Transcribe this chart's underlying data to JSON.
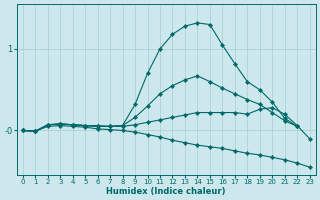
{
  "xlabel": "Humidex (Indice chaleur)",
  "ylabel": "",
  "bg_color": "#cce8ec",
  "grid_color": "#aaccd0",
  "line_color": "#006868",
  "xlim": [
    -0.5,
    23.5
  ],
  "ylim": [
    -0.55,
    1.55
  ],
  "xticks": [
    0,
    1,
    2,
    3,
    4,
    5,
    6,
    7,
    8,
    9,
    10,
    11,
    12,
    13,
    14,
    15,
    16,
    17,
    18,
    19,
    20,
    21,
    22,
    23
  ],
  "ytick_labels": [
    "-0",
    "1"
  ],
  "ytick_positions": [
    0,
    1
  ],
  "lines": [
    {
      "x": [
        0,
        1,
        2,
        3,
        4,
        5,
        6,
        7,
        8,
        9,
        10,
        11,
        12,
        13,
        14,
        15,
        16,
        17,
        18,
        19,
        20,
        21,
        22
      ],
      "y": [
        0.0,
        -0.01,
        0.07,
        0.08,
        0.07,
        0.06,
        0.05,
        0.05,
        0.06,
        0.32,
        0.7,
        1.0,
        1.18,
        1.28,
        1.32,
        1.3,
        1.05,
        0.82,
        0.6,
        0.5,
        0.35,
        0.15,
        0.05
      ]
    },
    {
      "x": [
        0,
        1,
        2,
        3,
        4,
        5,
        6,
        7,
        8,
        9,
        10,
        11,
        12,
        13,
        14,
        15,
        16,
        17,
        18,
        19,
        20,
        21,
        22
      ],
      "y": [
        0.0,
        -0.01,
        0.07,
        0.08,
        0.07,
        0.06,
        0.05,
        0.05,
        0.06,
        0.16,
        0.3,
        0.45,
        0.55,
        0.62,
        0.67,
        0.6,
        0.52,
        0.45,
        0.38,
        0.32,
        0.22,
        0.12,
        0.05
      ]
    },
    {
      "x": [
        0,
        1,
        2,
        3,
        4,
        5,
        6,
        7,
        8,
        9,
        10,
        11,
        12,
        13,
        14,
        15,
        16,
        17,
        18,
        19,
        20,
        21,
        22,
        23
      ],
      "y": [
        0.0,
        -0.01,
        0.07,
        0.08,
        0.07,
        0.06,
        0.06,
        0.05,
        0.05,
        0.07,
        0.1,
        0.13,
        0.16,
        0.19,
        0.22,
        0.22,
        0.22,
        0.22,
        0.2,
        0.26,
        0.28,
        0.2,
        0.06,
        -0.1
      ]
    },
    {
      "x": [
        0,
        1,
        2,
        3,
        4,
        5,
        6,
        7,
        8,
        9,
        10,
        11,
        12,
        13,
        14,
        15,
        16,
        17,
        18,
        19,
        20,
        21,
        22,
        23
      ],
      "y": [
        0.0,
        -0.01,
        0.05,
        0.06,
        0.05,
        0.04,
        0.02,
        0.01,
        0.0,
        -0.02,
        -0.05,
        -0.08,
        -0.12,
        -0.15,
        -0.18,
        -0.2,
        -0.22,
        -0.25,
        -0.28,
        -0.3,
        -0.33,
        -0.36,
        -0.4,
        -0.45
      ]
    }
  ]
}
